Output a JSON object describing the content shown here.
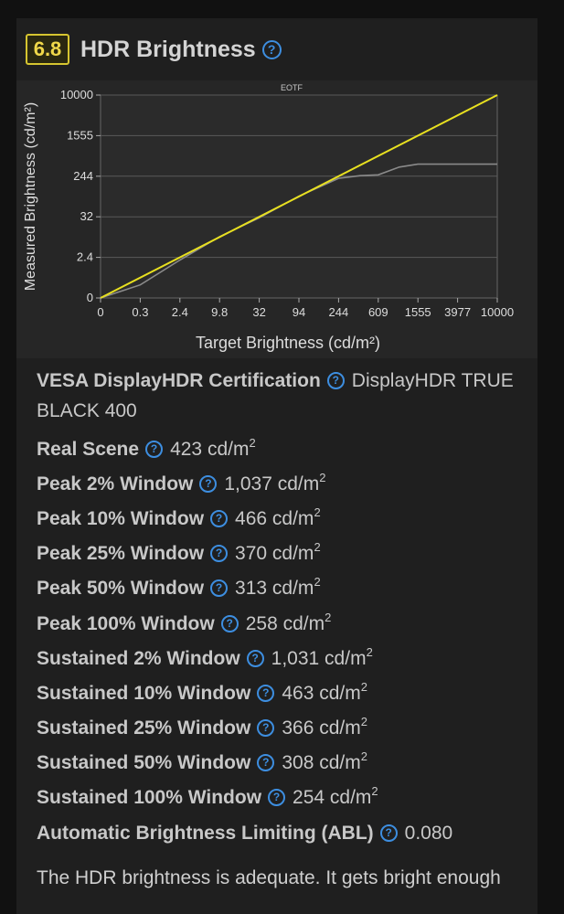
{
  "header": {
    "score": "6.8",
    "title": "HDR Brightness",
    "help_glyph": "?"
  },
  "chart_data": {
    "type": "line",
    "title": "EOTF",
    "xlabel": "Target Brightness (cd/m²)",
    "ylabel": "Measured Brightness (cd/m²)",
    "x_ticks": [
      "0",
      "0.3",
      "2.4",
      "9.8",
      "32",
      "94",
      "244",
      "609",
      "1555",
      "3977",
      "10000"
    ],
    "y_ticks": [
      "0",
      "2.4",
      "32",
      "244",
      "1555",
      "10000"
    ],
    "grid": true,
    "series": [
      {
        "name": "",
        "color": "#e8e020",
        "x": [
          "0",
          "10000"
        ],
        "values": [
          "0",
          "10000"
        ]
      },
      {
        "name": "",
        "color": "#8a8a8a",
        "x": [
          "0",
          "0.3",
          "2.4",
          "9.8",
          "32",
          "94",
          "244",
          "400",
          "609",
          "1000",
          "1555",
          "3977",
          "10000"
        ],
        "values": [
          "0",
          "0.25",
          "2.1",
          "9",
          "30",
          "90",
          "220",
          "250",
          "260",
          "370",
          "423",
          "423",
          "423"
        ]
      }
    ]
  },
  "specs": [
    {
      "label": "VESA DisplayHDR Certification",
      "value": "DisplayHDR TRUE BLACK 400",
      "unit": ""
    },
    {
      "label": "Real Scene",
      "value": "423 cd/m",
      "unit": "2"
    },
    {
      "label": "Peak 2% Window",
      "value": "1,037 cd/m",
      "unit": "2"
    },
    {
      "label": "Peak 10% Window",
      "value": "466 cd/m",
      "unit": "2"
    },
    {
      "label": "Peak 25% Window",
      "value": "370 cd/m",
      "unit": "2"
    },
    {
      "label": "Peak 50% Window",
      "value": "313 cd/m",
      "unit": "2"
    },
    {
      "label": "Peak 100% Window",
      "value": "258 cd/m",
      "unit": "2"
    },
    {
      "label": "Sustained 2% Window",
      "value": "1,031 cd/m",
      "unit": "2"
    },
    {
      "label": "Sustained 10% Window",
      "value": "463 cd/m",
      "unit": "2"
    },
    {
      "label": "Sustained 25% Window",
      "value": "366 cd/m",
      "unit": "2"
    },
    {
      "label": "Sustained 50% Window",
      "value": "308 cd/m",
      "unit": "2"
    },
    {
      "label": "Sustained 100% Window",
      "value": "254 cd/m",
      "unit": "2"
    },
    {
      "label": "Automatic Brightness Limiting (ABL)",
      "value": "0.080",
      "unit": ""
    }
  ],
  "summary": "The HDR brightness is adequate. It gets bright enough"
}
